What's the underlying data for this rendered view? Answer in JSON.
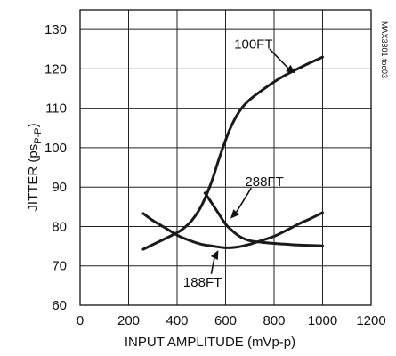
{
  "chart_data": {
    "type": "line",
    "xlabel": "INPUT AMPLITUDE (mVp-p)",
    "ylabel_main": "JITTER (ps",
    "ylabel_sub": "P-P",
    "ylabel_end": ")",
    "figure_code": "MAX3801 toc03",
    "xlim": [
      0,
      1200
    ],
    "ylim": [
      60,
      135
    ],
    "x_ticks": [
      0,
      200,
      400,
      600,
      800,
      1000,
      1200
    ],
    "y_ticks": [
      60,
      70,
      80,
      90,
      100,
      110,
      120,
      130
    ],
    "grid": true,
    "series": [
      {
        "name": "100FT",
        "x": [
          260,
          320,
          380,
          420,
          460,
          500,
          540,
          580,
          620,
          660,
          700,
          760,
          820,
          880,
          940,
          1000
        ],
        "y": [
          74.2,
          76.0,
          77.8,
          79.2,
          81.5,
          85.2,
          91.0,
          98.5,
          105.0,
          109.5,
          112.2,
          115.0,
          117.5,
          119.5,
          121.3,
          123.0
        ]
      },
      {
        "name": "188FT",
        "x": [
          260,
          300,
          350,
          400,
          450,
          500,
          550,
          600,
          650,
          700,
          750,
          800,
          850,
          900,
          950,
          1000
        ],
        "y": [
          83.3,
          81.5,
          79.7,
          77.8,
          76.5,
          75.5,
          75.0,
          74.6,
          74.8,
          75.5,
          76.5,
          77.5,
          79.0,
          80.6,
          82.0,
          83.5
        ]
      },
      {
        "name": "288FT",
        "x": [
          515,
          540,
          570,
          600,
          630,
          660,
          700,
          750,
          800,
          850,
          900,
          950,
          1000
        ],
        "y": [
          88.5,
          86.2,
          83.4,
          80.6,
          78.8,
          77.4,
          76.4,
          76.0,
          75.7,
          75.5,
          75.3,
          75.2,
          75.1
        ]
      }
    ],
    "annotations": [
      {
        "text": "100FT",
        "tx": 715,
        "ty": 125.2,
        "ax": 888,
        "ay": 118.9
      },
      {
        "text": "288FT",
        "tx": 760,
        "ty": 90.3,
        "ax": 620,
        "ay": 82.0
      },
      {
        "text": "188FT",
        "tx": 505,
        "ty": 64.8,
        "ax": 570,
        "ay": 74.0
      }
    ]
  }
}
